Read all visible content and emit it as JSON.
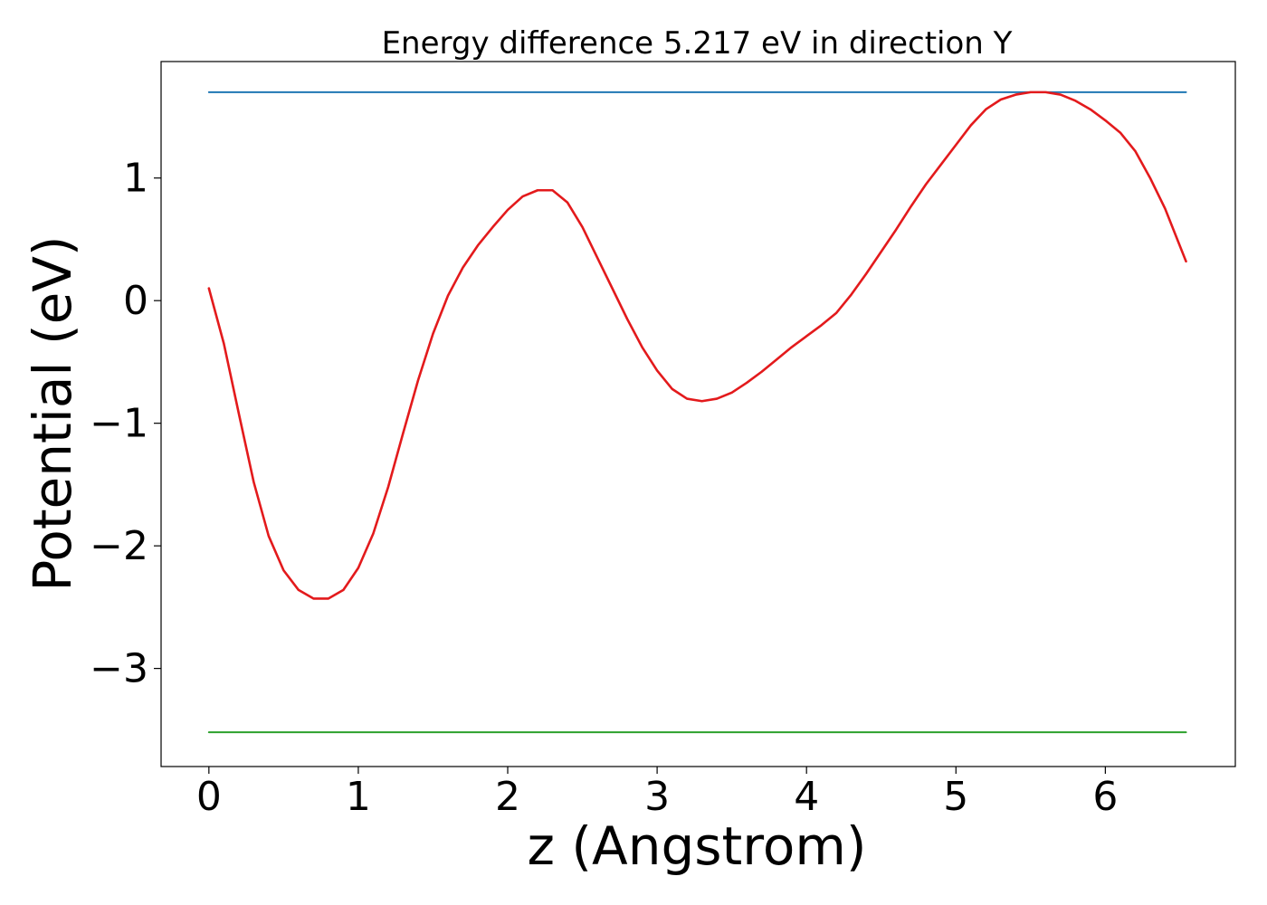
{
  "chart_data": {
    "type": "line",
    "title": "Energy difference 5.217 eV in direction Y",
    "xlabel": "z (Angstrom)",
    "ylabel": "Potential (eV)",
    "xlim": [
      -0.32,
      6.87
    ],
    "ylim": [
      -3.8,
      1.95
    ],
    "xticks": [
      0,
      1,
      2,
      3,
      4,
      5,
      6
    ],
    "yticks": [
      1,
      0,
      -1,
      -2,
      -3
    ],
    "ytick_labels": [
      "1",
      "0",
      "−1",
      "−2",
      "−3"
    ],
    "grid": false,
    "legend": "none",
    "series": [
      {
        "color": "#1f77b4",
        "x": [
          0,
          6.54
        ],
        "y": [
          1.7,
          1.7
        ]
      },
      {
        "color": "#2ca02c",
        "x": [
          0,
          6.54
        ],
        "y": [
          -3.52,
          -3.52
        ]
      },
      {
        "color": "#e31a1c",
        "x": [
          0,
          0.1,
          0.2,
          0.3,
          0.4,
          0.5,
          0.6,
          0.7,
          0.8,
          0.9,
          1.0,
          1.1,
          1.2,
          1.3,
          1.4,
          1.5,
          1.6,
          1.7,
          1.8,
          1.9,
          2.0,
          2.1,
          2.2,
          2.3,
          2.4,
          2.5,
          2.6,
          2.7,
          2.8,
          2.9,
          3.0,
          3.1,
          3.2,
          3.3,
          3.4,
          3.5,
          3.6,
          3.7,
          3.8,
          3.9,
          4.0,
          4.1,
          4.2,
          4.3,
          4.4,
          4.5,
          4.6,
          4.7,
          4.8,
          4.9,
          5.0,
          5.1,
          5.2,
          5.3,
          5.4,
          5.5,
          5.6,
          5.7,
          5.8,
          5.9,
          6.0,
          6.1,
          6.2,
          6.3,
          6.4,
          6.54
        ],
        "y": [
          0.1,
          -0.35,
          -0.92,
          -1.48,
          -1.92,
          -2.2,
          -2.36,
          -2.43,
          -2.43,
          -2.36,
          -2.18,
          -1.9,
          -1.52,
          -1.08,
          -0.65,
          -0.27,
          0.04,
          0.27,
          0.45,
          0.6,
          0.74,
          0.85,
          0.9,
          0.9,
          0.8,
          0.6,
          0.35,
          0.1,
          -0.15,
          -0.38,
          -0.57,
          -0.72,
          -0.8,
          -0.82,
          -0.8,
          -0.75,
          -0.67,
          -0.58,
          -0.48,
          -0.38,
          -0.29,
          -0.2,
          -0.1,
          0.05,
          0.22,
          0.4,
          0.58,
          0.77,
          0.95,
          1.11,
          1.27,
          1.43,
          1.56,
          1.64,
          1.68,
          1.7,
          1.7,
          1.68,
          1.63,
          1.56,
          1.47,
          1.37,
          1.22,
          1.0,
          0.75,
          0.32
        ]
      }
    ]
  }
}
